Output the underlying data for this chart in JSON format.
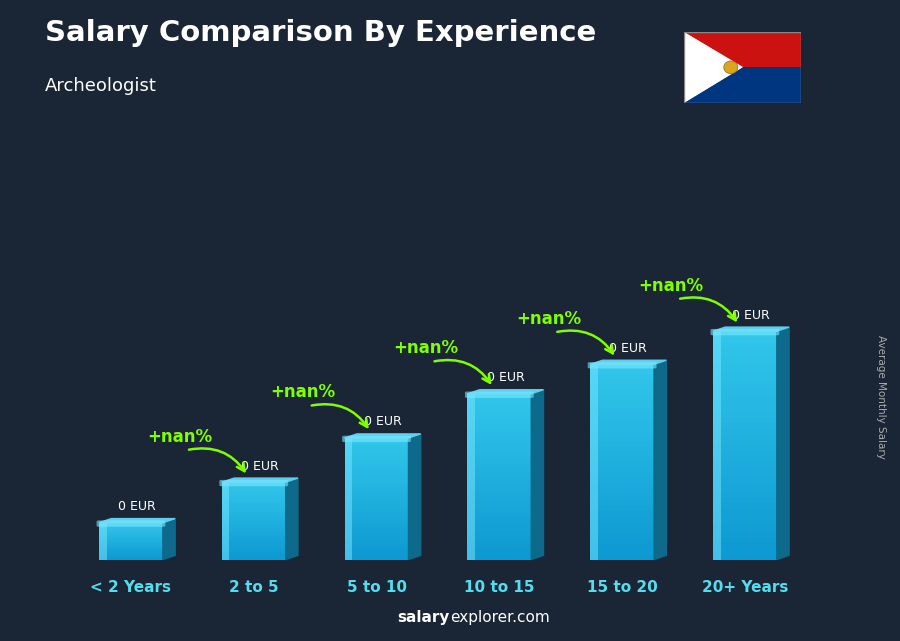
{
  "title": "Salary Comparison By Experience",
  "subtitle": "Archeologist",
  "categories": [
    "< 2 Years",
    "2 to 5",
    "5 to 10",
    "10 to 15",
    "15 to 20",
    "20+ Years"
  ],
  "heights": [
    1.0,
    2.1,
    3.3,
    4.5,
    5.3,
    6.2
  ],
  "bar_face_color": "#1AADDB",
  "bar_side_color": "#0D6A8A",
  "bar_top_color": "#5DD0F0",
  "bar_highlight": "#7AE8FF",
  "bg_color": "#1a2535",
  "title_color": "#ffffff",
  "subtitle_color": "#ffffff",
  "value_labels": [
    "0 EUR",
    "0 EUR",
    "0 EUR",
    "0 EUR",
    "0 EUR",
    "0 EUR"
  ],
  "pct_label": "+nan%",
  "ylabel": "Average Monthly Salary",
  "footer_bold": "salary",
  "footer_normal": "explorer.com",
  "green_color": "#7FFF00",
  "xtick_color": "#55DDEE",
  "figsize": [
    9.0,
    6.41
  ],
  "dpi": 100
}
